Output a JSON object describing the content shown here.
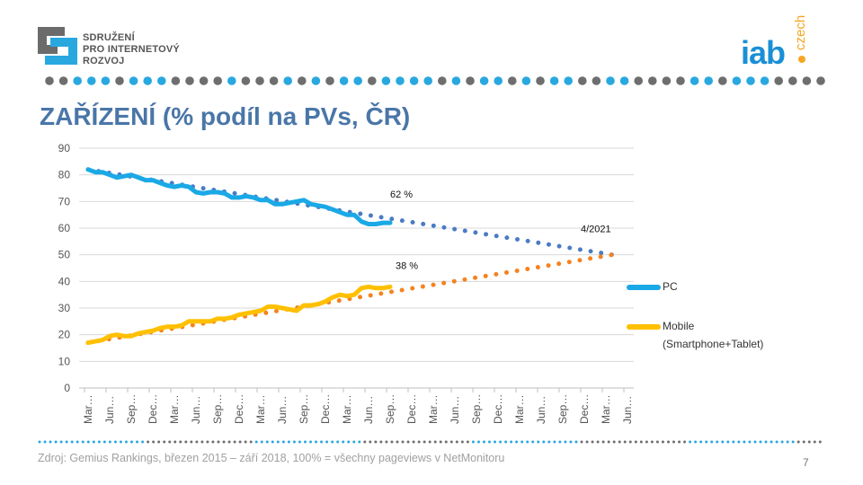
{
  "header": {
    "org_logo_lines": [
      "SDRUŽENÍ",
      "PRO INTERNETOVÝ",
      "ROZVOJ"
    ],
    "iab_logo": {
      "main": "iab",
      "sub": "czech"
    },
    "title": "ZAŘÍZENÍ (% podíl na PVs, ČR)"
  },
  "colors": {
    "pc": "#1aa9e6",
    "pc_trend": "#4a7cc4",
    "mobile": "#ffc000",
    "mobile_trend": "#f5821f",
    "title": "#4a76a8",
    "dot_gray": "#6e6e6e",
    "dot_blue": "#29a8e0"
  },
  "chart_data": {
    "type": "line",
    "title": "",
    "xlabel": "",
    "ylabel": "",
    "ylim": [
      0,
      90
    ],
    "yticks": [
      0,
      10,
      20,
      30,
      40,
      50,
      60,
      70,
      80,
      90
    ],
    "grid": true,
    "x_tick_labels": [
      "Mar…",
      "Jun…",
      "Sep…",
      "Dec…",
      "Mar…",
      "Jun…",
      "Sep…",
      "Dec…",
      "Mar…",
      "Jun…",
      "Sep…",
      "Dec…",
      "Mar…",
      "Jun…",
      "Sep…",
      "Dec…",
      "Mar…",
      "Jun…",
      "Sep…",
      "Dec…",
      "Mar…",
      "Jun…",
      "Sep…",
      "Dec…",
      "Mar…",
      "Jun…"
    ],
    "x_range": [
      "2015-03",
      "2021-06"
    ],
    "legend_placement": "right",
    "series": [
      {
        "name": "PC",
        "start": "2015-03",
        "values": [
          82,
          81,
          81,
          80,
          79,
          79.5,
          80,
          79,
          78,
          78,
          77,
          76,
          75.5,
          76,
          75.5,
          73.5,
          73,
          73.5,
          73.5,
          73,
          71.5,
          71.5,
          72,
          71.5,
          70.5,
          70.5,
          69,
          69,
          69.5,
          70,
          70.5,
          69,
          68.5,
          68,
          67,
          66,
          65,
          65,
          62.5,
          61.5,
          61.5,
          62,
          62
        ]
      },
      {
        "name": "Mobile\n(Smartphone+Tablet)",
        "start": "2015-03",
        "values": [
          17,
          17.5,
          18,
          19.5,
          20,
          19.5,
          19.5,
          20.5,
          21,
          21.5,
          22.5,
          23,
          23,
          23.5,
          25,
          25,
          25,
          25,
          26,
          26,
          26.5,
          27.5,
          28,
          28.5,
          29,
          30.5,
          30.5,
          30,
          29.5,
          29,
          31,
          31,
          31.5,
          32.5,
          34,
          35,
          34.5,
          35,
          37.5,
          38,
          37.5,
          37.5,
          38
        ]
      }
    ],
    "trends": [
      {
        "of": "PC",
        "from": "2015-03",
        "to": "2021-05",
        "start_value": 82,
        "end_value": 49.5
      },
      {
        "of": "Mobile",
        "from": "2015-03",
        "to": "2021-05",
        "start_value": 17,
        "end_value": 50.5
      }
    ],
    "annotations": [
      {
        "text": "62 %",
        "at": "2018-09",
        "value": 62
      },
      {
        "text": "38 %",
        "at": "2018-09",
        "value": 38
      },
      {
        "text": "4/2021",
        "at": "2021-04",
        "value": 50
      }
    ],
    "legend": [
      {
        "label": "PC"
      },
      {
        "label_line1": "Mobile",
        "label_line2": "(Smartphone+Tablet)"
      }
    ]
  },
  "footer": {
    "source": "Zdroj: Gemius Rankings,  březen 2015 – září 2018, 100% = všechny pageviews v NetMonitoru",
    "page_number": "7"
  }
}
